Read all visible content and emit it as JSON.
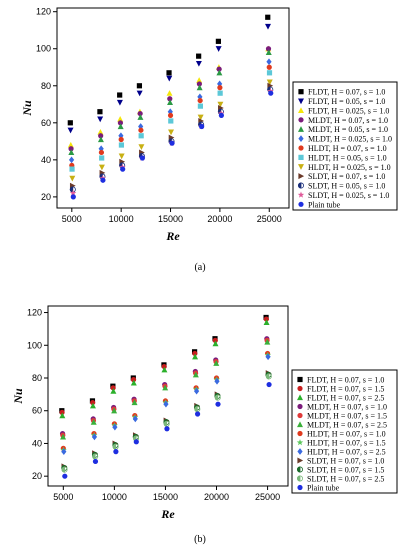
{
  "panels": [
    {
      "label": "(a)",
      "chart_data": {
        "type": "scatter",
        "xlabel": "Re",
        "ylabel": "Nu",
        "xlim": [
          3500,
          27000
        ],
        "ylim": [
          14,
          122
        ],
        "xticks": [
          "5000",
          "10000",
          "15000",
          "20000",
          "25000"
        ],
        "yticks": [
          "20",
          "40",
          "60",
          "80",
          "100",
          "120"
        ],
        "xtick_values": [
          5000,
          10000,
          15000,
          20000,
          25000
        ],
        "ytick_values": [
          20,
          40,
          60,
          80,
          100,
          120
        ],
        "legend_position": "right",
        "x": [
          5000,
          8000,
          10000,
          12000,
          15000,
          18000,
          20000,
          25000
        ],
        "series": [
          {
            "name": "FLDT, H = 0.07, s = 1.0",
            "color": "#000000",
            "marker": "square",
            "values": [
              60,
              66,
              75,
              80,
              87,
              96,
              104,
              117
            ]
          },
          {
            "name": "FLDT, H = 0.05, s = 1.0",
            "color": "#00008b",
            "marker": "tri-down",
            "values": [
              56,
              62,
              71,
              76,
              84,
              92,
              100,
              112
            ]
          },
          {
            "name": "FLDT, H = 0.025, s = 1.0",
            "color": "#f5e60a",
            "marker": "tri-up",
            "values": [
              48,
              55,
              62,
              66,
              76,
              83,
              90,
              100
            ]
          },
          {
            "name": "MLDT, H = 0.07, s = 1.0",
            "color": "#7b1c7b",
            "marker": "circle",
            "values": [
              46,
              53,
              60,
              65,
              73,
              81,
              89,
              100
            ]
          },
          {
            "name": "MLDT, H = 0.05, s = 1.0",
            "color": "#2b9a45",
            "marker": "tri-up",
            "values": [
              44,
              51,
              58,
              63,
              71,
              79,
              87,
              98
            ]
          },
          {
            "name": "MLDT, H = 0.025, s = 1.0",
            "color": "#3a6ae0",
            "marker": "diamond",
            "values": [
              40,
              46,
              53,
              58,
              66,
              74,
              81,
              93
            ]
          },
          {
            "name": "HLDT, H = 0.07, s = 1.0",
            "color": "#e03a1e",
            "marker": "circle",
            "values": [
              37,
              44,
              51,
              56,
              64,
              72,
              79,
              90
            ]
          },
          {
            "name": "HLDT, H = 0.05, s = 1.0",
            "color": "#5cc8d8",
            "marker": "square",
            "values": [
              35,
              41,
              48,
              53,
              61,
              69,
              76,
              87
            ]
          },
          {
            "name": "HLDT, H = 0.025, s = 1.0",
            "color": "#c8b014",
            "marker": "tri-down",
            "values": [
              30,
              36,
              42,
              47,
              55,
              63,
              70,
              82
            ]
          },
          {
            "name": "SLDT, H = 0.07, s = 1.0",
            "color": "#6b3a2a",
            "marker": "tri-right",
            "values": [
              26,
              33,
              39,
              44,
              52,
              61,
              68,
              80
            ]
          },
          {
            "name": "SLDT, H = 0.05, s = 1.0",
            "color": "#1a2e7a",
            "marker": "half-circle",
            "values": [
              24,
              31,
              37,
              42,
              50,
              59,
              66,
              78
            ]
          },
          {
            "name": "SLDT, H = 0.025, s = 1.0",
            "color": "#e05a9a",
            "marker": "star",
            "values": [
              22,
              30,
              36,
              41,
              49,
              58,
              65,
              77
            ]
          },
          {
            "name": "Plain tube",
            "color": "#1e2ee0",
            "marker": "circle",
            "values": [
              20,
              29,
              35,
              41,
              49,
              58,
              64,
              76
            ]
          }
        ]
      }
    },
    {
      "label": "(b)",
      "chart_data": {
        "type": "scatter",
        "xlabel": "Re",
        "ylabel": "Nu",
        "xlim": [
          3500,
          27000
        ],
        "ylim": [
          14,
          124
        ],
        "xticks": [
          "5000",
          "10000",
          "15000",
          "20000",
          "25000"
        ],
        "yticks": [
          "20",
          "40",
          "60",
          "80",
          "100",
          "120"
        ],
        "xtick_values": [
          5000,
          10000,
          15000,
          20000,
          25000
        ],
        "ytick_values": [
          20,
          40,
          60,
          80,
          100,
          120
        ],
        "legend_position": "right",
        "x": [
          5000,
          8000,
          10000,
          12000,
          15000,
          18000,
          20000,
          25000
        ],
        "series": [
          {
            "name": "FLDT, H = 0.07, s = 1.0",
            "color": "#000000",
            "marker": "square",
            "values": [
              60,
              66,
              75,
              80,
              88,
              96,
              104,
              117
            ]
          },
          {
            "name": "FLDT, H = 0.07, s = 1.5",
            "color": "#c81e1e",
            "marker": "circle",
            "values": [
              59,
              65,
              74,
              79,
              87,
              95,
              103,
              116
            ]
          },
          {
            "name": "FLDT, H = 0.07, s = 2.5",
            "color": "#2bb02b",
            "marker": "tri-up",
            "values": [
              57,
              63,
              72,
              77,
              85,
              93,
              101,
              114
            ]
          },
          {
            "name": "MLDT, H = 0.07, s = 1.0",
            "color": "#7b1c7b",
            "marker": "circle",
            "values": [
              46,
              55,
              62,
              67,
              76,
              84,
              91,
              104
            ]
          },
          {
            "name": "MLDT, H = 0.07, s = 1.5",
            "color": "#e03a3a",
            "marker": "circle",
            "values": [
              45,
              54,
              61,
              66,
              75,
              83,
              90,
              103
            ]
          },
          {
            "name": "MLDT, H = 0.07, s = 2.5",
            "color": "#3ab03a",
            "marker": "tri-up",
            "values": [
              44,
              53,
              60,
              65,
              74,
              82,
              89,
              102
            ]
          },
          {
            "name": "HLDT, H = 0.07, s = 1.0",
            "color": "#e03a1e",
            "marker": "circle",
            "values": [
              37,
              46,
              52,
              57,
              66,
              74,
              80,
              95
            ]
          },
          {
            "name": "HLDT, H = 0.07, s = 1.5",
            "color": "#5cc85c",
            "marker": "star",
            "values": [
              36,
              45,
              51,
              56,
              65,
              73,
              79,
              94
            ]
          },
          {
            "name": "HLDT, H = 0.07, s = 2.5",
            "color": "#3a6ae0",
            "marker": "diamond",
            "values": [
              35,
              44,
              50,
              55,
              64,
              72,
              78,
              93
            ]
          },
          {
            "name": "SLDT, H = 0.07, s = 1.0",
            "color": "#6b3a2a",
            "marker": "tri-right",
            "values": [
              26,
              34,
              40,
              45,
              54,
              63,
              70,
              83
            ]
          },
          {
            "name": "SLDT, H = 0.07, s = 1.5",
            "color": "#1a6a2a",
            "marker": "half-circle",
            "values": [
              25,
              33,
              39,
              44,
              53,
              62,
              69,
              82
            ]
          },
          {
            "name": "SLDT, H = 0.07, s = 2.5",
            "color": "#7ab87a",
            "marker": "half-circle",
            "values": [
              24,
              32,
              38,
              43,
              52,
              61,
              68,
              81
            ]
          },
          {
            "name": "Plain tube",
            "color": "#1e2ee0",
            "marker": "circle",
            "values": [
              20,
              29,
              35,
              41,
              49,
              58,
              64,
              76
            ]
          }
        ]
      }
    }
  ]
}
